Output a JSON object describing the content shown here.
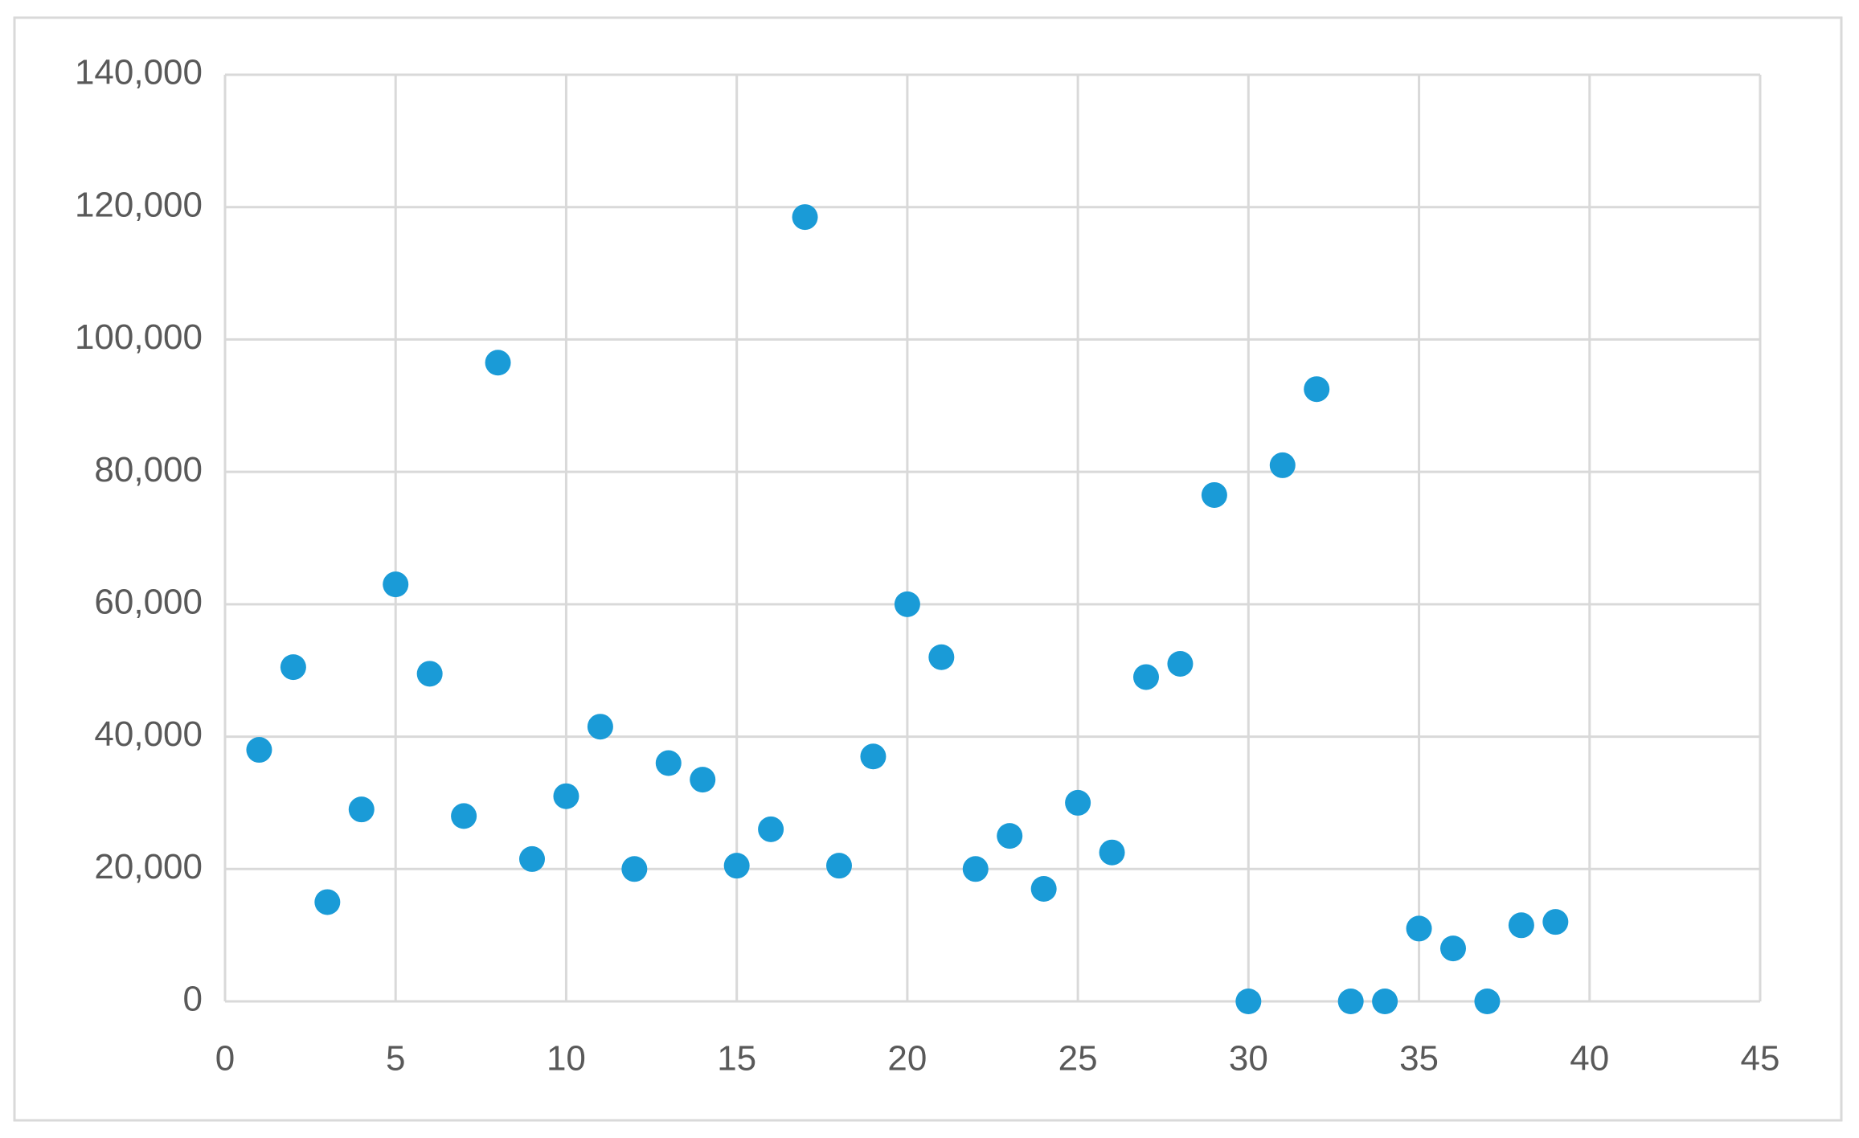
{
  "chart_data": {
    "type": "scatter",
    "x": [
      1,
      2,
      3,
      4,
      5,
      6,
      7,
      8,
      9,
      10,
      11,
      12,
      13,
      14,
      15,
      16,
      17,
      18,
      19,
      20,
      21,
      22,
      23,
      24,
      25,
      26,
      27,
      28,
      29,
      30,
      31,
      32,
      33,
      34,
      35,
      36,
      37,
      38,
      39
    ],
    "values": [
      38000,
      50500,
      15000,
      29000,
      63000,
      49500,
      28000,
      96500,
      21500,
      31000,
      41500,
      20000,
      36000,
      33500,
      20500,
      26000,
      118500,
      20500,
      37000,
      60000,
      52000,
      20000,
      25000,
      17000,
      30000,
      22500,
      49000,
      51000,
      76500,
      0,
      81000,
      92500,
      0,
      0,
      11000,
      8000,
      0,
      11500,
      12000
    ],
    "color": "#1a9bd7",
    "xlim": [
      0,
      45
    ],
    "xticks": [
      0,
      5,
      10,
      15,
      20,
      25,
      30,
      35,
      40,
      45
    ],
    "ylim": [
      0,
      140000
    ],
    "yticks": [
      0,
      {
        "value": 20000,
        "label": "20,000"
      },
      {
        "value": 40000,
        "label": "40,000"
      },
      {
        "value": 60000,
        "label": "60,000"
      },
      {
        "value": 80000,
        "label": "80,000"
      },
      {
        "value": 100000,
        "label": "100,000"
      },
      {
        "value": 120000,
        "label": "120,000"
      },
      {
        "value": 140000,
        "label": "140,000"
      }
    ],
    "grid": true
  }
}
